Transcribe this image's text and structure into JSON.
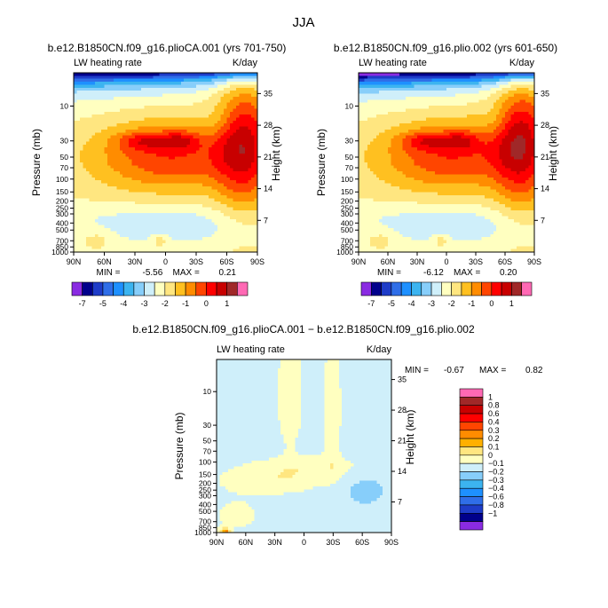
{
  "page": {
    "title": "JJA",
    "bg_color": "#ffffff"
  },
  "chart_data": [
    {
      "type": "heatmap",
      "id": "panel1",
      "title": "b.e12.B1850CN.f09_g16.plioCA.001 (yrs 701-750)",
      "subtitle_left": "LW heating rate",
      "subtitle_right": "K/day",
      "xlabel": "",
      "ylabel": "Pressure (mb)",
      "ylabel_right": "Height (km)",
      "x_ticks": [
        "90N",
        "60N",
        "30N",
        "0",
        "30S",
        "60S",
        "90S"
      ],
      "y_ticks": [
        "10",
        "30",
        "50",
        "70",
        "100",
        "150",
        "200",
        "250",
        "300",
        "400",
        "500",
        "700",
        "850",
        "1000"
      ],
      "y_ticks_right": [
        "35",
        "28",
        "21",
        "14",
        "7"
      ],
      "ylim_mb": [
        1000,
        3.5
      ],
      "stats": {
        "min_label": "MIN =",
        "min": "-5.56",
        "max_label": "MAX =",
        "max": "0.21"
      },
      "contour_levels": [
        -7,
        -6,
        -5,
        -4.5,
        -4,
        -3.5,
        -3,
        -2.5,
        -2,
        -1.5,
        -1,
        -0.5,
        0,
        0.5,
        1
      ],
      "colorbar_labels": [
        "-7",
        "-5",
        "-4",
        "-3",
        "-2",
        "-1",
        "0",
        "1"
      ],
      "colors": [
        "#8a2be2",
        "#00008b",
        "#1e3cc8",
        "#2f6ee8",
        "#1e90ff",
        "#3cb4f0",
        "#87cefa",
        "#cfeffa",
        "#ffffc0",
        "#ffe680",
        "#ffc020",
        "#ff8c00",
        "#ff4500",
        "#ff0000",
        "#c80000",
        "#a02828",
        "#ff69b4"
      ]
    },
    {
      "type": "heatmap",
      "id": "panel2",
      "title": "b.e12.B1850CN.f09_g16.plio.002 (yrs 601-650)",
      "subtitle_left": "LW heating rate",
      "subtitle_right": "K/day",
      "xlabel": "",
      "ylabel": "Pressure (mb)",
      "ylabel_right": "Height (km)",
      "x_ticks": [
        "90N",
        "60N",
        "30N",
        "0",
        "30S",
        "60S",
        "90S"
      ],
      "y_ticks": [
        "10",
        "30",
        "50",
        "70",
        "100",
        "150",
        "200",
        "250",
        "300",
        "400",
        "500",
        "700",
        "850",
        "1000"
      ],
      "y_ticks_right": [
        "35",
        "28",
        "21",
        "14",
        "7"
      ],
      "ylim_mb": [
        1000,
        3.5
      ],
      "stats": {
        "min_label": "MIN =",
        "min": "-6.12",
        "max_label": "MAX =",
        "max": "0.20"
      },
      "contour_levels": [
        -7,
        -6,
        -5,
        -4.5,
        -4,
        -3.5,
        -3,
        -2.5,
        -2,
        -1.5,
        -1,
        -0.5,
        0,
        0.5,
        1
      ],
      "colorbar_labels": [
        "-7",
        "-5",
        "-4",
        "-3",
        "-2",
        "-1",
        "0",
        "1"
      ],
      "colors": [
        "#8a2be2",
        "#00008b",
        "#1e3cc8",
        "#2f6ee8",
        "#1e90ff",
        "#3cb4f0",
        "#87cefa",
        "#cfeffa",
        "#ffffc0",
        "#ffe680",
        "#ffc020",
        "#ff8c00",
        "#ff4500",
        "#ff0000",
        "#c80000",
        "#a02828",
        "#ff69b4"
      ]
    },
    {
      "type": "heatmap",
      "id": "panel3",
      "title": "b.e12.B1850CN.f09_g16.plioCA.001 − b.e12.B1850CN.f09_g16.plio.002",
      "subtitle_left": "LW heating rate",
      "subtitle_right": "K/day",
      "xlabel": "",
      "ylabel": "Pressure (mb)",
      "ylabel_right": "Height (km)",
      "x_ticks": [
        "90N",
        "60N",
        "30N",
        "0",
        "30S",
        "60S",
        "90S"
      ],
      "y_ticks": [
        "10",
        "30",
        "50",
        "70",
        "100",
        "150",
        "200",
        "250",
        "300",
        "400",
        "500",
        "700",
        "850",
        "1000"
      ],
      "y_ticks_right": [
        "35",
        "28",
        "21",
        "14",
        "7"
      ],
      "ylim_mb": [
        1000,
        3.5
      ],
      "stats": {
        "min_label": "MIN =",
        "min": "-0.67",
        "max_label": "MAX =",
        "max": "0.82"
      },
      "contour_levels": [
        -1,
        -0.8,
        -0.6,
        -0.4,
        -0.3,
        -0.2,
        -0.1,
        0,
        0.1,
        0.2,
        0.3,
        0.4,
        0.6,
        0.8,
        1
      ],
      "colorbar_labels": [
        "1",
        "0.8",
        "0.6",
        "0.4",
        "0.3",
        "0.2",
        "0.1",
        "0",
        "−0.1",
        "−0.2",
        "−0.3",
        "−0.4",
        "−0.6",
        "−0.8",
        "−1"
      ],
      "colors": [
        "#ff69b4",
        "#a02828",
        "#c80000",
        "#ff0000",
        "#ff4500",
        "#ff8c00",
        "#ffb000",
        "#ffe680",
        "#ffffc0",
        "#cfeffa",
        "#87cefa",
        "#3cb4f0",
        "#1e90ff",
        "#2f6ee8",
        "#1e3cc8",
        "#00008b",
        "#8a2be2"
      ]
    }
  ]
}
